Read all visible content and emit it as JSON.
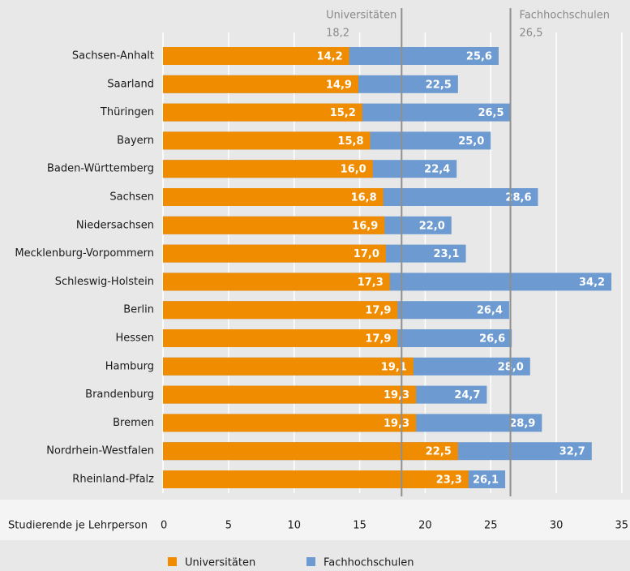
{
  "chart_data": {
    "type": "bar",
    "orientation": "horizontal",
    "overlap": true,
    "xlabel": "Studierende je Lehrperson",
    "categories": [
      "Sachsen-Anhalt",
      "Saarland",
      "Thüringen",
      "Bayern",
      "Baden-Württemberg",
      "Sachsen",
      "Niedersachsen",
      "Mecklenburg-Vorpommern",
      "Schleswig-Holstein",
      "Berlin",
      "Hessen",
      "Hamburg",
      "Brandenburg",
      "Bremen",
      "Nordrhein-Westfalen",
      "Rheinland-Pfalz"
    ],
    "series": [
      {
        "name": "Fachhochschulen",
        "color": "#6d9bd1",
        "values": [
          25.6,
          22.5,
          26.5,
          25.0,
          22.4,
          28.6,
          22.0,
          23.1,
          34.2,
          26.4,
          26.6,
          28.0,
          24.7,
          28.9,
          32.7,
          26.1
        ],
        "value_labels": [
          "25,6",
          "22,5",
          "26,5",
          "25,0",
          "22,4",
          "28,6",
          "22,0",
          "23,1",
          "34,2",
          "26,4",
          "26,6",
          "28,0",
          "24,7",
          "28,9",
          "32,7",
          "26,1"
        ]
      },
      {
        "name": "Universitäten",
        "color": "#f08c00",
        "values": [
          14.2,
          14.9,
          15.2,
          15.8,
          16.0,
          16.8,
          16.9,
          17.0,
          17.3,
          17.9,
          17.9,
          19.1,
          19.3,
          19.3,
          22.5,
          23.3
        ],
        "value_labels": [
          "14,2",
          "14,9",
          "15,2",
          "15,8",
          "16,0",
          "16,8",
          "16,9",
          "17,0",
          "17,3",
          "17,9",
          "17,9",
          "19,1",
          "19,3",
          "19,3",
          "22,5",
          "23,3"
        ]
      }
    ],
    "legend_order": [
      1,
      0
    ],
    "reference_lines": [
      {
        "name": "Universitäten",
        "value": 18.2,
        "label": "18,2",
        "side": "left"
      },
      {
        "name": "Fachhochschulen",
        "value": 26.5,
        "label": "26,5",
        "side": "right"
      }
    ],
    "xlim": [
      0,
      35
    ],
    "xticks": [
      0,
      5,
      10,
      15,
      20,
      25,
      30,
      35
    ],
    "grid": true
  }
}
